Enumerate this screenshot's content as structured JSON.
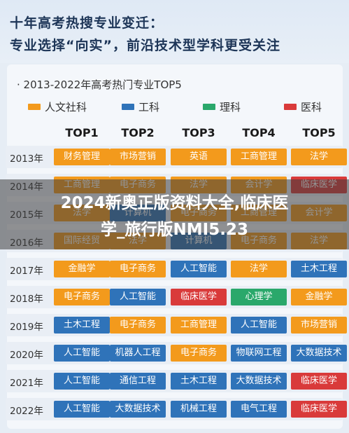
{
  "header": {
    "line1": "十年高考热搜专业变迁：",
    "line2": "专业选择“向实”，前沿技术型学科更受关注"
  },
  "subtitle": "· 2013-2022年高考热门专业TOP5",
  "colors": {
    "humanities": "#f39a1c",
    "engineering": "#2f73b9",
    "science": "#2aa86b",
    "medicine": "#d93a3a"
  },
  "legend": [
    {
      "label": "人文社科",
      "color": "#f39a1c"
    },
    {
      "label": "工科",
      "color": "#2f73b9"
    },
    {
      "label": "理科",
      "color": "#2aa86b"
    },
    {
      "label": "医科",
      "color": "#d93a3a"
    }
  ],
  "columns": [
    "TOP1",
    "TOP2",
    "TOP3",
    "TOP4",
    "TOP5"
  ],
  "rows": [
    {
      "year": "2013年",
      "cells": [
        {
          "t": "财务管理",
          "c": "h"
        },
        {
          "t": "市场营销",
          "c": "h"
        },
        {
          "t": "英语",
          "c": "h"
        },
        {
          "t": "工商管理",
          "c": "h"
        },
        {
          "t": "法学",
          "c": "h"
        }
      ]
    },
    {
      "year": "2014年",
      "cells": [
        {
          "t": "工商管理",
          "c": "h"
        },
        {
          "t": "电子商务",
          "c": "h"
        },
        {
          "t": "法学",
          "c": "h"
        },
        {
          "t": "会计学",
          "c": "h"
        },
        {
          "t": "临床医学",
          "c": "m"
        }
      ]
    },
    {
      "year": "2015年",
      "cells": [
        {
          "t": "法学",
          "c": "h"
        },
        {
          "t": "计算机",
          "c": "e"
        },
        {
          "t": "电子商务",
          "c": "h"
        },
        {
          "t": "工商管理",
          "c": "h"
        },
        {
          "t": "会计学",
          "c": "h"
        }
      ]
    },
    {
      "year": "2016年",
      "cells": [
        {
          "t": "国际经贸",
          "c": "h"
        },
        {
          "t": "法学",
          "c": "h"
        },
        {
          "t": "计算机",
          "c": "e"
        },
        {
          "t": "电子商务",
          "c": "h"
        },
        {
          "t": "法学",
          "c": "h"
        }
      ]
    },
    {
      "year": "2017年",
      "cells": [
        {
          "t": "金融学",
          "c": "h"
        },
        {
          "t": "电子商务",
          "c": "h"
        },
        {
          "t": "人工智能",
          "c": "e"
        },
        {
          "t": "法学",
          "c": "h"
        },
        {
          "t": "土木工程",
          "c": "e"
        }
      ]
    },
    {
      "year": "2018年",
      "cells": [
        {
          "t": "电子商务",
          "c": "h"
        },
        {
          "t": "人工智能",
          "c": "e"
        },
        {
          "t": "临床医学",
          "c": "m"
        },
        {
          "t": "心理学",
          "c": "s"
        },
        {
          "t": "金融学",
          "c": "h"
        }
      ]
    },
    {
      "year": "2019年",
      "cells": [
        {
          "t": "土木工程",
          "c": "e"
        },
        {
          "t": "电子商务",
          "c": "h"
        },
        {
          "t": "工商管理",
          "c": "h"
        },
        {
          "t": "人工智能",
          "c": "e"
        },
        {
          "t": "市场营销",
          "c": "h"
        }
      ]
    },
    {
      "year": "2020年",
      "cells": [
        {
          "t": "人工智能",
          "c": "e"
        },
        {
          "t": "机器人工程",
          "c": "e"
        },
        {
          "t": "电子商务",
          "c": "h"
        },
        {
          "t": "物联网工程",
          "c": "e"
        },
        {
          "t": "大数据技术",
          "c": "e"
        }
      ]
    },
    {
      "year": "2021年",
      "cells": [
        {
          "t": "人工智能",
          "c": "e"
        },
        {
          "t": "通信工程",
          "c": "e"
        },
        {
          "t": "土木工程",
          "c": "e"
        },
        {
          "t": "大数据技术",
          "c": "e"
        },
        {
          "t": "临床医学",
          "c": "m"
        }
      ]
    },
    {
      "year": "2022年",
      "cells": [
        {
          "t": "人工智能",
          "c": "e"
        },
        {
          "t": "大数据技术",
          "c": "e"
        },
        {
          "t": "机械工程",
          "c": "e"
        },
        {
          "t": "电气工程",
          "c": "e"
        },
        {
          "t": "临床医学",
          "c": "m"
        }
      ]
    }
  ],
  "banner": {
    "line1": "2024新奥正版资料大全,临床医",
    "line2": "学_旅行版NMI5.23"
  }
}
